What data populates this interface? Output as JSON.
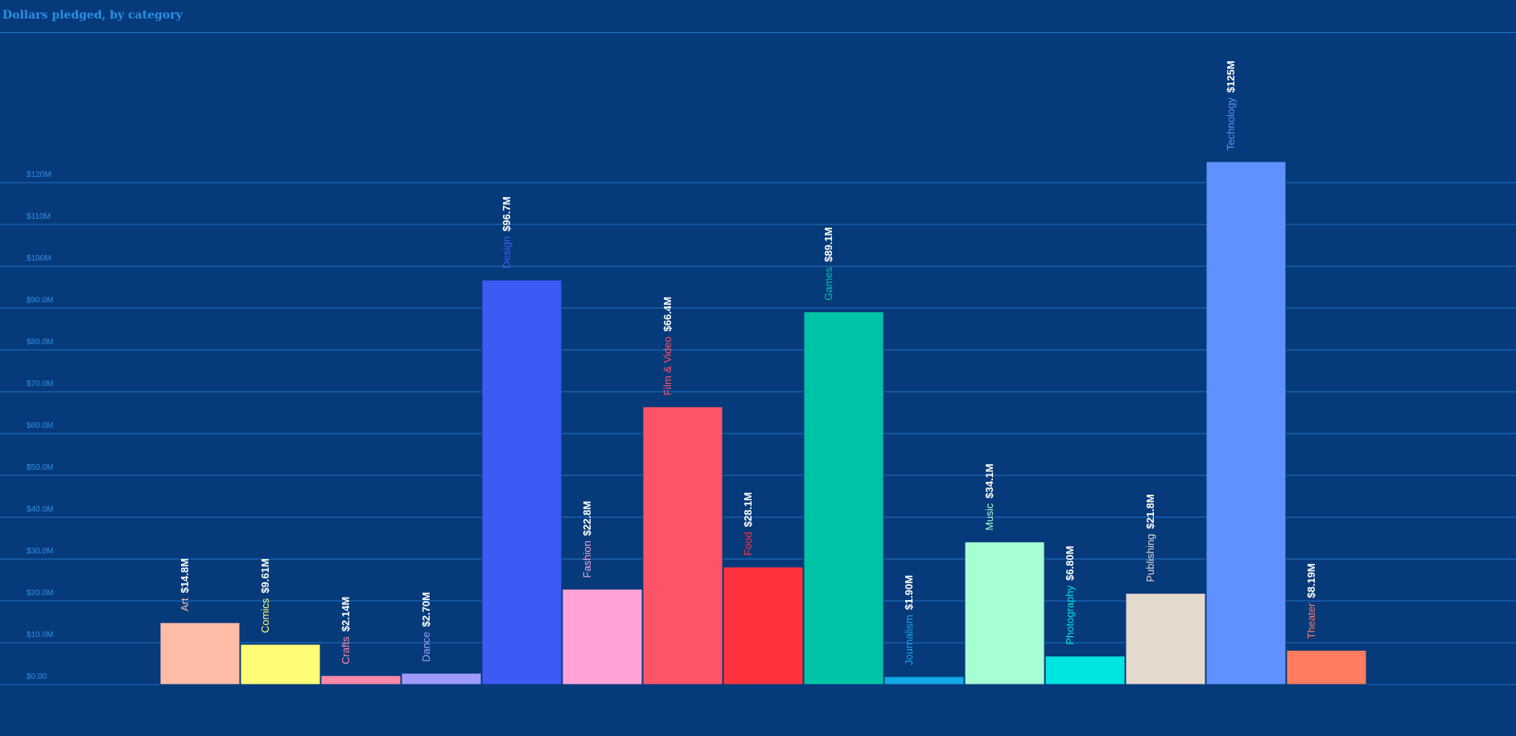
{
  "chart_data": {
    "type": "bar",
    "title": "Dollars pledged, by category",
    "xlabel": "",
    "ylabel": "",
    "ylim": [
      0,
      120
    ],
    "grid": true,
    "y_ticks": [
      0,
      10,
      20,
      30,
      40,
      50,
      60,
      70,
      80,
      90,
      100,
      110,
      120
    ],
    "y_tick_labels": [
      "$0.00",
      "$10.0M",
      "$20.0M",
      "$30.0M",
      "$40.0M",
      "$50.0M",
      "$60.0M",
      "$70.0M",
      "$80.0M",
      "$90.0M",
      "$100M",
      "$110M",
      "$120M"
    ],
    "categories": [
      "Art",
      "Comics",
      "Crafts",
      "Dance",
      "Design",
      "Fashion",
      "Film & Video",
      "Food",
      "Games",
      "Journalism",
      "Music",
      "Photography",
      "Publishing",
      "Technology",
      "Theater"
    ],
    "values": [
      14.8,
      9.61,
      2.14,
      2.7,
      96.7,
      22.8,
      66.4,
      28.1,
      89.1,
      1.9,
      34.1,
      6.8,
      21.8,
      125,
      8.19
    ],
    "value_labels": [
      "$14.8M",
      "$9.61M",
      "$2.14M",
      "$2.70M",
      "$96.7M",
      "$22.8M",
      "$66.4M",
      "$28.1M",
      "$89.1M",
      "$1.90M",
      "$34.1M",
      "$6.80M",
      "$21.8M",
      "$125M",
      "$8.19M"
    ],
    "colors": [
      "#ffbca7",
      "#fffc77",
      "#ff8aa9",
      "#a09afa",
      "#3d5af5",
      "#ffa3d7",
      "#fe5467",
      "#ff323e",
      "#00c4a8",
      "#12a9e6",
      "#a5ffd3",
      "#00e4e0",
      "#e4d9cd",
      "#5f91ff",
      "#ff7c5e"
    ]
  }
}
